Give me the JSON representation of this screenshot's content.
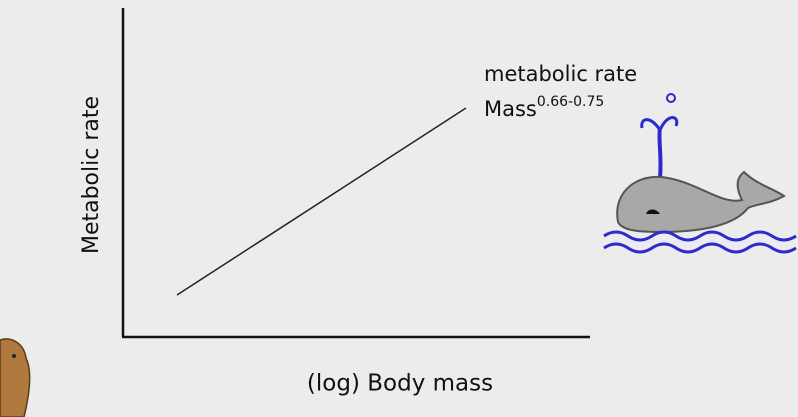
{
  "y_axis_label": "Metabolic rate",
  "x_axis_label": "(log) Body mass",
  "annotation": {
    "line1": "metabolic rate",
    "base": "Mass",
    "exponent": "0.66-0.75"
  }
}
